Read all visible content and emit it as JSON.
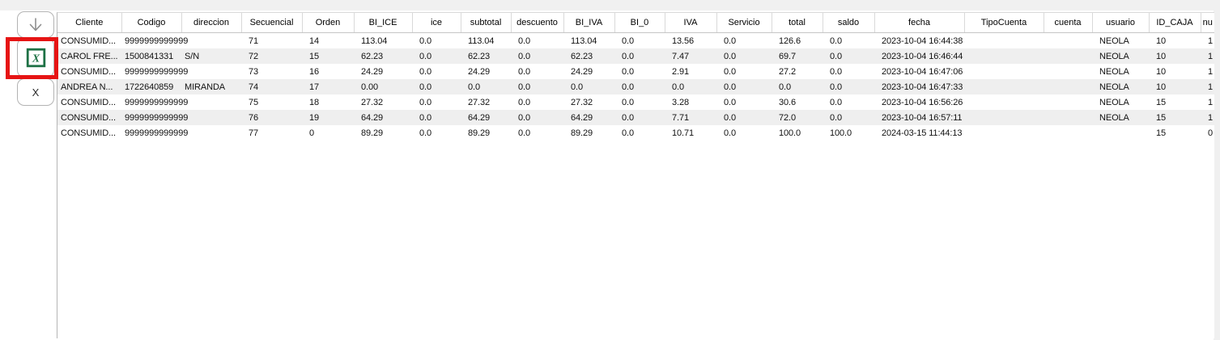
{
  "window": {
    "colors": {
      "top_strip": "#f0f0f0",
      "right_strip": "#f0f0f0",
      "row_alt": "#efefef",
      "grid_line": "#d9d9d9",
      "highlight_red": "#e61414",
      "excel_green": "#1e7145",
      "arrow_gray": "#8f8f8f"
    }
  },
  "toolbar": {
    "buttons": [
      {
        "id": "move-down",
        "icon": "down-arrow-icon",
        "label": ""
      },
      {
        "id": "export-excel",
        "icon": "excel-icon",
        "label": "",
        "highlighted": true
      },
      {
        "id": "close",
        "icon": "",
        "label": "X"
      }
    ],
    "close_label": "X"
  },
  "table": {
    "columns": [
      {
        "key": "cliente",
        "label": "Cliente",
        "width": 79,
        "tight": true
      },
      {
        "key": "codigo",
        "label": "Codigo",
        "width": 74,
        "tight": true
      },
      {
        "key": "direccion",
        "label": "direccion",
        "width": 74,
        "tight": true
      },
      {
        "key": "secuencial",
        "label": "Secuencial",
        "width": 75,
        "tight": false
      },
      {
        "key": "orden",
        "label": "Orden",
        "width": 64,
        "tight": false
      },
      {
        "key": "bi_ice",
        "label": "BI_ICE",
        "width": 72,
        "tight": false
      },
      {
        "key": "ice",
        "label": "ice",
        "width": 60,
        "tight": false
      },
      {
        "key": "subtotal",
        "label": "subtotal",
        "width": 62,
        "tight": false
      },
      {
        "key": "descuento",
        "label": "descuento",
        "width": 65,
        "tight": false
      },
      {
        "key": "bi_iva",
        "label": "BI_IVA",
        "width": 63,
        "tight": false
      },
      {
        "key": "bi_0",
        "label": "BI_0",
        "width": 62,
        "tight": false
      },
      {
        "key": "iva",
        "label": "IVA",
        "width": 64,
        "tight": false
      },
      {
        "key": "servicio",
        "label": "Servicio",
        "width": 68,
        "tight": false
      },
      {
        "key": "total",
        "label": "total",
        "width": 63,
        "tight": false
      },
      {
        "key": "saldo",
        "label": "saldo",
        "width": 64,
        "tight": false
      },
      {
        "key": "fecha",
        "label": "fecha",
        "width": 111,
        "tight": false
      },
      {
        "key": "tipocuenta",
        "label": "TipoCuenta",
        "width": 98,
        "tight": false
      },
      {
        "key": "cuenta",
        "label": "cuenta",
        "width": 60,
        "tight": false
      },
      {
        "key": "usuario",
        "label": "usuario",
        "width": 70,
        "tight": false
      },
      {
        "key": "id_caja",
        "label": "ID_CAJA",
        "width": 64,
        "tight": false
      },
      {
        "key": "nu",
        "label": "nu",
        "width": 17,
        "tight": false
      }
    ],
    "rows": [
      [
        "CONSUMID...",
        "9999999999999",
        "",
        "71",
        "14",
        "113.04",
        "0.0",
        "113.04",
        "0.0",
        "113.04",
        "0.0",
        "13.56",
        "0.0",
        "126.6",
        "0.0",
        "2023-10-04 16:44:38",
        "",
        "",
        "NEOLA",
        "10",
        "1"
      ],
      [
        "CAROL FRE...",
        "1500841331",
        "S/N",
        "72",
        "15",
        "62.23",
        "0.0",
        "62.23",
        "0.0",
        "62.23",
        "0.0",
        "7.47",
        "0.0",
        "69.7",
        "0.0",
        "2023-10-04 16:46:44",
        "",
        "",
        "NEOLA",
        "10",
        "1"
      ],
      [
        "CONSUMID...",
        "9999999999999",
        "",
        "73",
        "16",
        "24.29",
        "0.0",
        "24.29",
        "0.0",
        "24.29",
        "0.0",
        "2.91",
        "0.0",
        "27.2",
        "0.0",
        "2023-10-04 16:47:06",
        "",
        "",
        "NEOLA",
        "10",
        "1"
      ],
      [
        "ANDREA N...",
        "1722640859",
        "MIRANDA",
        "74",
        "17",
        "0.00",
        "0.0",
        "0.0",
        "0.0",
        "0.0",
        "0.0",
        "0.0",
        "0.0",
        "0.0",
        "0.0",
        "2023-10-04 16:47:33",
        "",
        "",
        "NEOLA",
        "10",
        "1"
      ],
      [
        "CONSUMID...",
        "9999999999999",
        "",
        "75",
        "18",
        "27.32",
        "0.0",
        "27.32",
        "0.0",
        "27.32",
        "0.0",
        "3.28",
        "0.0",
        "30.6",
        "0.0",
        "2023-10-04 16:56:26",
        "",
        "",
        "NEOLA",
        "15",
        "1"
      ],
      [
        "CONSUMID...",
        "9999999999999",
        "",
        "76",
        "19",
        "64.29",
        "0.0",
        "64.29",
        "0.0",
        "64.29",
        "0.0",
        "7.71",
        "0.0",
        "72.0",
        "0.0",
        "2023-10-04 16:57:11",
        "",
        "",
        "NEOLA",
        "15",
        "1"
      ],
      [
        "CONSUMID...",
        "9999999999999",
        "",
        "77",
        "0",
        "89.29",
        "0.0",
        "89.29",
        "0.0",
        "89.29",
        "0.0",
        "10.71",
        "0.0",
        "100.0",
        "100.0",
        "2024-03-15 11:44:13",
        "",
        "",
        "",
        "15",
        "0"
      ]
    ]
  }
}
